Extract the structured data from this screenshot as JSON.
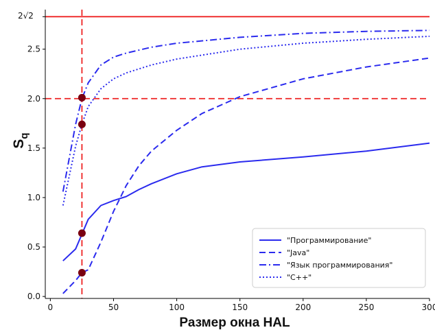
{
  "chart_data": {
    "type": "line",
    "xlabel": "Размер окна HAL",
    "ylabel": "S",
    "ylabel_subscript": "q",
    "xlim": [
      -4,
      300
    ],
    "ylim": [
      -0.02,
      2.9
    ],
    "x_ticks": [
      0,
      50,
      100,
      150,
      200,
      250,
      300
    ],
    "x_tick_labels": [
      "0",
      "50",
      "100",
      "150",
      "200",
      "250",
      "300"
    ],
    "y_ticks": [
      0.0,
      0.5,
      1.0,
      1.5,
      2.0,
      2.5
    ],
    "y_tick_labels": [
      "0.0",
      "0.5",
      "1.0",
      "1.5",
      "2.0",
      "2.5"
    ],
    "top_tick_label": "2√2",
    "grid": false,
    "legend_position": "lower-right",
    "series": [
      {
        "name": "\"Программирование\"",
        "style": "solid",
        "color": "#2a2aee",
        "x": [
          10,
          20,
          25,
          30,
          40,
          50,
          60,
          70,
          80,
          100,
          120,
          150,
          200,
          250,
          300
        ],
        "y": [
          0.36,
          0.48,
          0.63,
          0.78,
          0.92,
          0.97,
          1.01,
          1.08,
          1.14,
          1.24,
          1.31,
          1.36,
          1.41,
          1.47,
          1.55
        ]
      },
      {
        "name": "\"Java\"",
        "style": "dashed",
        "color": "#2a2aee",
        "x": [
          10,
          20,
          25,
          30,
          40,
          50,
          60,
          70,
          80,
          100,
          120,
          150,
          200,
          250,
          300
        ],
        "y": [
          0.03,
          0.16,
          0.24,
          0.27,
          0.55,
          0.86,
          1.12,
          1.32,
          1.47,
          1.68,
          1.85,
          2.02,
          2.2,
          2.32,
          2.41
        ]
      },
      {
        "name": "\"Язык программирования\"",
        "style": "dashdot",
        "color": "#2a2aee",
        "x": [
          10,
          20,
          25,
          30,
          40,
          50,
          60,
          80,
          100,
          150,
          200,
          250,
          300
        ],
        "y": [
          1.06,
          1.74,
          2.0,
          2.16,
          2.34,
          2.42,
          2.46,
          2.52,
          2.56,
          2.62,
          2.66,
          2.68,
          2.69
        ]
      },
      {
        "name": "\"C++\"",
        "style": "dotted",
        "color": "#2a2aee",
        "x": [
          10,
          20,
          25,
          30,
          40,
          50,
          60,
          80,
          100,
          150,
          200,
          250,
          300
        ],
        "y": [
          0.92,
          1.52,
          1.74,
          1.92,
          2.1,
          2.2,
          2.26,
          2.34,
          2.4,
          2.5,
          2.56,
          2.6,
          2.63
        ]
      }
    ],
    "reference_lines": [
      {
        "orientation": "horizontal",
        "value": 2.8284,
        "style": "solid",
        "color": "#ee2222"
      },
      {
        "orientation": "horizontal",
        "value": 2.0,
        "style": "dashed",
        "color": "#ee2222"
      },
      {
        "orientation": "vertical",
        "value": 25,
        "style": "dashed",
        "color": "#ee2222"
      }
    ],
    "markers": {
      "color": "#7a0010",
      "points": [
        {
          "x": 25,
          "y": 2.01
        },
        {
          "x": 25,
          "y": 1.74
        },
        {
          "x": 25,
          "y": 0.64
        },
        {
          "x": 25,
          "y": 0.24
        }
      ]
    }
  }
}
